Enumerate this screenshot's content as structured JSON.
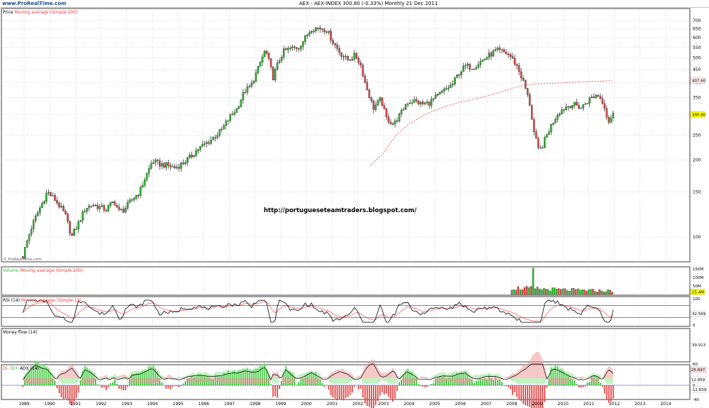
{
  "header": {
    "brand": "www.ProRealTime.com",
    "title": "AEX - AEX-INDEX    300.80 (-0.33%)    Monthly  21 Dec 2011"
  },
  "url_text": "http://portugueseteamtraders.blogspot.com/",
  "watermark": "© ProRealTime.com",
  "chart_data": [
    {
      "type": "candlestick",
      "panel": "price",
      "legend": [
        "Price",
        "Moving average (Simple 200)"
      ],
      "y_ticks": [
        100,
        150,
        200,
        250,
        300,
        350,
        400,
        450,
        500,
        550,
        600,
        650,
        700
      ],
      "y_scale": "log",
      "last_price": "300.80",
      "ma_value": "407.60",
      "x_ticks": [
        "1989",
        "1990",
        "1991",
        "1992",
        "1993",
        "1994",
        "1995",
        "1996",
        "1997",
        "1998",
        "1999",
        "2000",
        "2001",
        "2002",
        "2003",
        "2004",
        "2005",
        "2006",
        "2007",
        "2008",
        "2009",
        "2010",
        "2011",
        "2012",
        "2013",
        "2014"
      ],
      "close_path": [
        [
          1988.95,
          84
        ],
        [
          1989.3,
          110
        ],
        [
          1989.7,
          135
        ],
        [
          1989.9,
          150
        ],
        [
          1990.2,
          140
        ],
        [
          1990.6,
          122
        ],
        [
          1990.85,
          100
        ],
        [
          1991.1,
          112
        ],
        [
          1991.4,
          130
        ],
        [
          1991.7,
          134
        ],
        [
          1991.9,
          131
        ],
        [
          1992.2,
          128
        ],
        [
          1992.5,
          138
        ],
        [
          1992.7,
          126
        ],
        [
          1992.9,
          128
        ],
        [
          1993.2,
          140
        ],
        [
          1993.5,
          150
        ],
        [
          1993.8,
          178
        ],
        [
          1994.0,
          198
        ],
        [
          1994.3,
          192
        ],
        [
          1994.6,
          190
        ],
        [
          1994.9,
          186
        ],
        [
          1995.2,
          195
        ],
        [
          1995.5,
          206
        ],
        [
          1995.8,
          222
        ],
        [
          1996.1,
          232
        ],
        [
          1996.4,
          245
        ],
        [
          1996.7,
          262
        ],
        [
          1997.0,
          292
        ],
        [
          1997.3,
          318
        ],
        [
          1997.6,
          372
        ],
        [
          1997.85,
          390
        ],
        [
          1998.1,
          450
        ],
        [
          1998.4,
          538
        ],
        [
          1998.7,
          420
        ],
        [
          1998.9,
          480
        ],
        [
          1999.1,
          530
        ],
        [
          1999.4,
          545
        ],
        [
          1999.7,
          550
        ],
        [
          1999.9,
          590
        ],
        [
          2000.2,
          652
        ],
        [
          2000.5,
          655
        ],
        [
          2000.8,
          642
        ],
        [
          2001.0,
          585
        ],
        [
          2001.3,
          525
        ],
        [
          2001.6,
          490
        ],
        [
          2001.9,
          512
        ],
        [
          2002.1,
          475
        ],
        [
          2002.3,
          395
        ],
        [
          2002.6,
          318
        ],
        [
          2002.9,
          345
        ],
        [
          2003.1,
          292
        ],
        [
          2003.4,
          275
        ],
        [
          2003.7,
          306
        ],
        [
          2003.9,
          335
        ],
        [
          2004.2,
          340
        ],
        [
          2004.5,
          330
        ],
        [
          2004.8,
          335
        ],
        [
          2005.1,
          355
        ],
        [
          2005.4,
          375
        ],
        [
          2005.7,
          395
        ],
        [
          2005.9,
          432
        ],
        [
          2006.2,
          465
        ],
        [
          2006.5,
          460
        ],
        [
          2006.8,
          485
        ],
        [
          2007.1,
          510
        ],
        [
          2007.4,
          535
        ],
        [
          2007.6,
          530
        ],
        [
          2007.9,
          515
        ],
        [
          2008.2,
          465
        ],
        [
          2008.5,
          390
        ],
        [
          2008.7,
          330
        ],
        [
          2008.85,
          260
        ],
        [
          2009.05,
          215
        ],
        [
          2009.2,
          228
        ],
        [
          2009.5,
          268
        ],
        [
          2009.8,
          305
        ],
        [
          2010.1,
          322
        ],
        [
          2010.4,
          330
        ],
        [
          2010.7,
          320
        ],
        [
          2010.9,
          335
        ],
        [
          2011.1,
          350
        ],
        [
          2011.35,
          360
        ],
        [
          2011.6,
          330
        ],
        [
          2011.75,
          280
        ],
        [
          2011.95,
          300.8
        ]
      ],
      "ma_path": [
        [
          2002.5,
          190
        ],
        [
          2003.0,
          212
        ],
        [
          2003.5,
          250
        ],
        [
          2004.0,
          276
        ],
        [
          2004.6,
          300
        ],
        [
          2005.0,
          312
        ],
        [
          2005.5,
          325
        ],
        [
          2006.0,
          336
        ],
        [
          2006.5,
          345
        ],
        [
          2007.0,
          355
        ],
        [
          2007.5,
          366
        ],
        [
          2008.0,
          380
        ],
        [
          2008.5,
          392
        ],
        [
          2009.0,
          396
        ],
        [
          2009.5,
          398
        ],
        [
          2010.0,
          400
        ],
        [
          2010.5,
          403
        ],
        [
          2011.0,
          405
        ],
        [
          2011.95,
          407.6
        ]
      ]
    },
    {
      "type": "bar",
      "panel": "volume",
      "legend": [
        "Volume",
        "Moving average (Simple 200)"
      ],
      "y_ticks": [
        "150M",
        "100M",
        "50M"
      ],
      "last_value": "15.4M",
      "range": [
        2008.0,
        2011.95
      ]
    },
    {
      "type": "line",
      "panel": "rsi",
      "legend": [
        "RSI (14)",
        "Moving average (Simple 14)"
      ],
      "y_ticks": [
        100,
        0
      ],
      "levels": [
        70,
        30
      ],
      "last_value": "42.569"
    },
    {
      "type": "line",
      "panel": "money_flow",
      "legend": [
        "Money flow (14)"
      ],
      "last_value": "39.913"
    },
    {
      "type": "line",
      "panel": "adx",
      "legend": [
        "DI-",
        "DI+",
        "ADX (14)"
      ],
      "y_ticks": [
        60,
        40,
        0,
        -40
      ],
      "last_values": [
        "25.697",
        "12.859",
        "-12.839"
      ]
    }
  ],
  "colors": {
    "up": "#2bbf2b",
    "down": "#e04a4a",
    "ma": "#ff3333",
    "grid": "#9a9a9a",
    "border": "#404040",
    "level_line": "#3030cc",
    "last_price_bg": "#ffff00"
  }
}
